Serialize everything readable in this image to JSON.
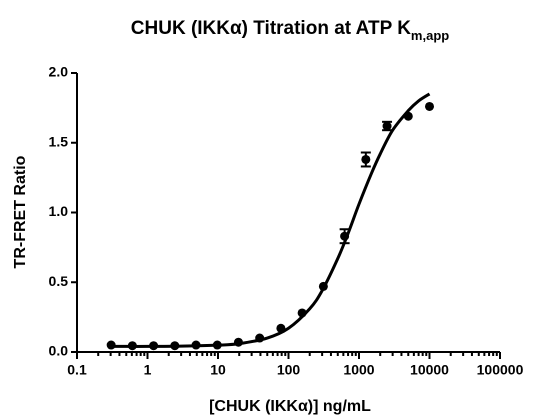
{
  "chart_data": {
    "type": "scatter",
    "title": {
      "text": "CHUK (IKKα) Titration at ATP K",
      "subscript": "m,app"
    },
    "x_label": "[CHUK (IKKα)] ng/mL",
    "y_label": "TR-FRET Ratio",
    "log_x": true,
    "minor_xticks": true,
    "color": "#000000",
    "x": [
      0.305,
      0.61,
      1.22,
      2.44,
      4.88,
      9.77,
      19.5,
      39,
      78,
      156,
      312.5,
      625,
      1250,
      2500,
      5000,
      10000
    ],
    "values": [
      0.05,
      0.045,
      0.045,
      0.045,
      0.05,
      0.05,
      0.07,
      0.1,
      0.17,
      0.28,
      0.47,
      0.83,
      1.38,
      1.62,
      1.69,
      1.76
    ],
    "errors": [
      null,
      null,
      null,
      null,
      null,
      null,
      null,
      null,
      null,
      null,
      null,
      0.05,
      0.05,
      0.03,
      null,
      null
    ],
    "fit": {
      "x": [
        0.3,
        1,
        3,
        10,
        20,
        50,
        100,
        200,
        300,
        500,
        700,
        1000,
        1500,
        2000,
        3000,
        5000,
        7000,
        10000
      ],
      "y": [
        0.04,
        0.04,
        0.042,
        0.049,
        0.06,
        0.1,
        0.17,
        0.31,
        0.44,
        0.67,
        0.85,
        1.06,
        1.28,
        1.42,
        1.59,
        1.73,
        1.8,
        1.85
      ]
    },
    "xlim": [
      0.1,
      100000
    ],
    "ylim": [
      0,
      2
    ],
    "xticks": [
      0.1,
      1,
      10,
      100,
      1000,
      10000,
      100000
    ],
    "yticks": [
      {
        "value": 0,
        "label": "0.0"
      },
      0.5,
      {
        "value": 1,
        "label": "1.0"
      },
      1.5,
      {
        "value": 2,
        "label": "2.0"
      }
    ]
  }
}
